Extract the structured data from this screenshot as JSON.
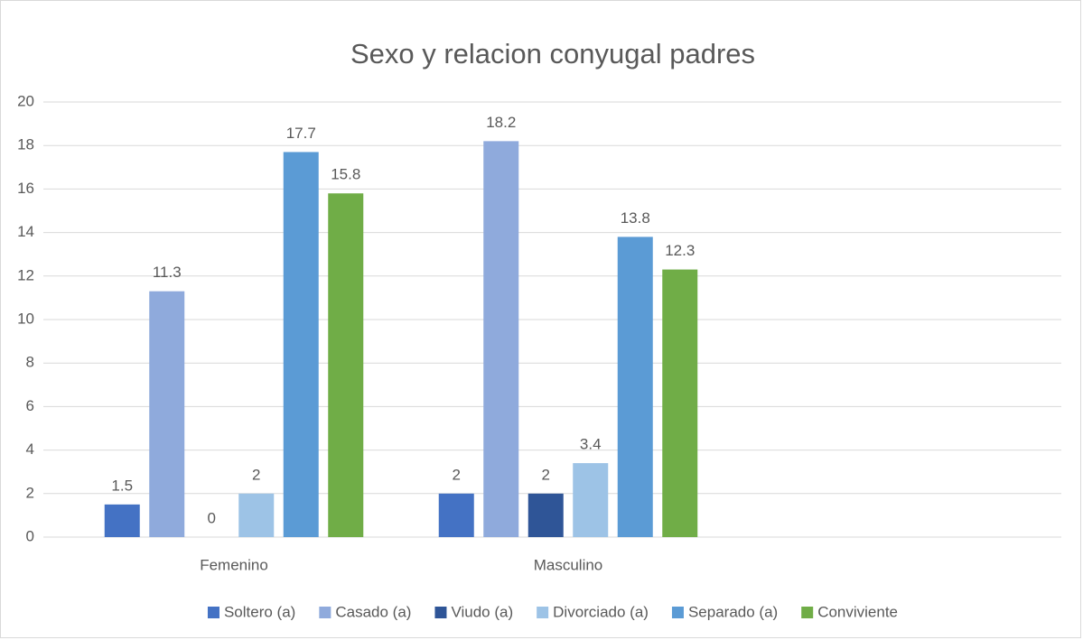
{
  "chart_data": {
    "type": "bar",
    "title": "Sexo y relacion conyugal padres",
    "categories": [
      "Femenino",
      "Masculino",
      null
    ],
    "series": [
      {
        "name": "Soltero (a)",
        "color": "#4472c4",
        "values": [
          1.5,
          2,
          null
        ]
      },
      {
        "name": "Casado (a)",
        "color": "#8faadc",
        "values": [
          11.3,
          18.2,
          null
        ]
      },
      {
        "name": "Viudo (a)",
        "color": "#2f5597",
        "values": [
          0,
          2,
          null
        ]
      },
      {
        "name": "Divorciado (a)",
        "color": "#9dc3e6",
        "values": [
          2,
          3.4,
          null
        ]
      },
      {
        "name": "Separado (a)",
        "color": "#5b9bd5",
        "values": [
          17.7,
          13.8,
          null
        ]
      },
      {
        "name": "Conviviente",
        "color": "#70ad47",
        "values": [
          15.8,
          12.3,
          null
        ]
      }
    ],
    "ylim": [
      0,
      20
    ],
    "yticks": [
      0,
      2,
      4,
      6,
      8,
      10,
      12,
      14,
      16,
      18,
      20
    ],
    "grid": true,
    "legend": "bottom"
  }
}
